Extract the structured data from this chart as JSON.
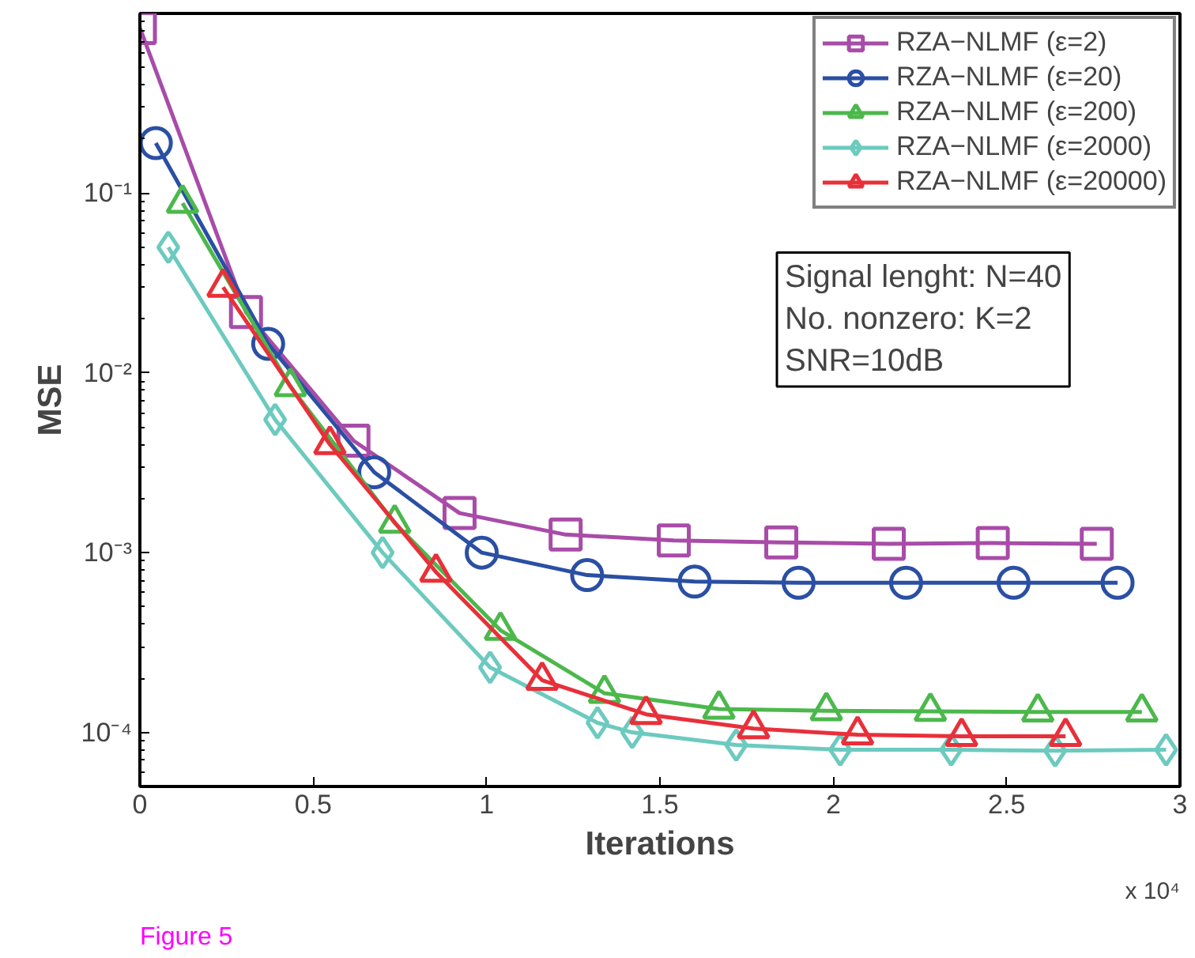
{
  "chart_data": {
    "type": "line",
    "xlabel": "Iterations",
    "ylabel": "MSE",
    "log": "y",
    "grid": false,
    "legend": "top right",
    "xlim": [
      0,
      3
    ],
    "xticks": [
      0,
      0.5,
      1,
      1.5,
      2,
      2.5,
      3
    ],
    "ylim": [
      5e-05,
      1
    ],
    "yticks": [
      {
        "value": 0.0001,
        "label": "10⁻⁴"
      },
      {
        "value": 0.001,
        "label": "10⁻³"
      },
      {
        "value": 0.01,
        "label": "10⁻²"
      },
      {
        "value": 0.1,
        "label": "10⁻¹"
      }
    ],
    "annotations": [
      "Signal lenght: N=40\nNo. nonzero: K=2\nSNR=10dB",
      "x 10⁴",
      "Figure 5"
    ],
    "series": [
      {
        "name": "RZA−NLMF (ε=2)",
        "color": "#a84ca8",
        "marker": "square",
        "x": [
          0,
          0.306,
          0.616,
          0.922,
          1.228,
          1.54,
          1.85,
          2.16,
          2.46,
          2.76
        ],
        "values": [
          0.83,
          0.0218,
          0.0042,
          0.00166,
          0.00126,
          0.00117,
          0.00114,
          0.00112,
          0.00113,
          0.00112
        ]
      },
      {
        "name": "RZA−NLMF (ε=20)",
        "color": "#2a4fa3",
        "marker": "circle",
        "x": [
          0.046,
          0.37,
          0.676,
          0.986,
          1.29,
          1.6,
          1.9,
          2.21,
          2.52,
          2.82
        ],
        "values": [
          0.19,
          0.0145,
          0.0028,
          0.001,
          0.00075,
          0.00069,
          0.00068,
          0.00068,
          0.00068,
          0.00068
        ]
      },
      {
        "name": "RZA−NLMF (ε=200)",
        "color": "#4cb84c",
        "marker": "triangle",
        "x": [
          0.123,
          0.434,
          0.735,
          1.04,
          1.34,
          1.67,
          1.98,
          2.28,
          2.59,
          2.89
        ],
        "values": [
          0.088,
          0.0084,
          0.00146,
          0.00037,
          0.000165,
          0.000135,
          0.000132,
          0.000131,
          0.00013,
          0.00013
        ]
      },
      {
        "name": "RZA−NLMF (ε=2000)",
        "color": "#6ccabf",
        "marker": "diamond",
        "x": [
          0.082,
          0.39,
          0.7,
          1.01,
          1.32,
          1.42,
          1.72,
          2.02,
          2.34,
          2.64,
          2.96
        ],
        "values": [
          0.05,
          0.0055,
          0.001,
          0.00023,
          0.000113,
          0.0001,
          8.5e-05,
          8e-05,
          8e-05,
          7.9e-05,
          8e-05
        ]
      },
      {
        "name": "RZA−NLMF (ε=20000)",
        "color": "#e8303a",
        "marker": "triangle",
        "x": [
          0.24,
          0.548,
          0.854,
          1.16,
          1.46,
          1.77,
          2.07,
          2.37,
          2.67
        ],
        "values": [
          0.03,
          0.004,
          0.00078,
          0.000195,
          0.000126,
          0.000105,
          9.7e-05,
          9.5e-05,
          9.5e-05
        ]
      }
    ]
  }
}
